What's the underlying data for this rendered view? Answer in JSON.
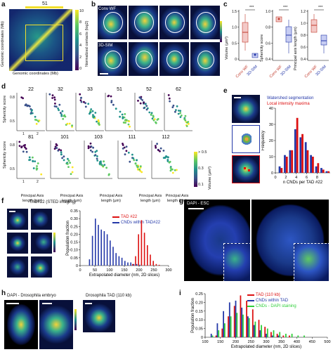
{
  "panels": {
    "a": {
      "label": "a",
      "top_value": "51",
      "y_label": "Genomic coordinates (Mb)",
      "x_label": "Genomic coordinates (Mb)",
      "colorbar_label": "Normalized contacts (log2)",
      "colorbar_ticks": [
        "10",
        "8",
        "6",
        "4",
        "2",
        "0"
      ]
    },
    "b": {
      "label": "b",
      "row1": "Conv WF",
      "row2": "3D-SIM"
    },
    "c": {
      "label": "c",
      "sig": "***",
      "plots": [
        {
          "ylabel": "Volume (μm³)",
          "ticks": [
            "1.5",
            "1.0",
            "0.5",
            "0"
          ]
        },
        {
          "ylabel": "Sphericity score",
          "ticks": [
            "1.0",
            "0.8",
            "0.6",
            "0.4"
          ]
        },
        {
          "ylabel": "Principal axis length (μm)",
          "ticks": [
            "1.2",
            "1.0",
            "0.8",
            "0.6",
            "0.4"
          ]
        }
      ],
      "xcats": [
        "Conv WF",
        "3D-SIM"
      ]
    },
    "d": {
      "label": "d",
      "titles_row1": [
        "22",
        "32",
        "33",
        "51",
        "52",
        "62"
      ],
      "titles_row2": [
        "81",
        "101",
        "103",
        "111",
        "112"
      ],
      "ylabel": "Sphericity score",
      "xlabel": "Principal Axis length (μm)",
      "yticks": [
        "0.8",
        "0.5"
      ],
      "xticks": [
        "1",
        "2"
      ],
      "colorbar_label": "Volume (μm³)",
      "colorbar_ticks": [
        "> 0.5",
        "0.3",
        "0.1"
      ]
    },
    "e": {
      "label": "e",
      "legend": [
        "Watershed segmentation",
        "Local intensity maxima"
      ],
      "ylabel": "Frequency",
      "xlabel": "n CNDs per TAD #22",
      "yticks": [
        "40",
        "30",
        "20",
        "10",
        "0"
      ],
      "xticks": [
        "0",
        "2",
        "4",
        "6",
        "8"
      ],
      "chart_data": {
        "type": "bar",
        "categories": [
          "1",
          "2",
          "3",
          "4",
          "5",
          "6",
          "7",
          "8",
          "9",
          "10"
        ],
        "series": [
          {
            "name": "Watershed segmentation",
            "values": [
              4,
              11,
              14,
              27,
              22,
              19,
              11,
              4,
              3,
              1
            ]
          },
          {
            "name": "Local intensity maxima",
            "values": [
              3,
              10,
              14,
              34,
              24,
              14,
              10,
              6,
              2,
              1
            ]
          }
        ],
        "ylim": [
          0,
          40
        ]
      }
    },
    "f": {
      "label": "f",
      "title": "TAD#22 (STED imaging)",
      "legend": [
        "TAD #22",
        "CNDs within TAD#22"
      ],
      "ylabel": "Population fraction",
      "xlabel": "Extrapolated diameter (nm, 2D slices)",
      "yticks": [
        "0.35",
        "0.30",
        "0.25",
        "0.20",
        "0.15",
        "0.10",
        "0.05",
        "0"
      ],
      "xticks": [
        "0",
        "50",
        "100",
        "150",
        "200",
        "250",
        "300"
      ],
      "chart_data": {
        "type": "bar",
        "series": [
          {
            "name": "TAD #22",
            "x": [
              180,
              190,
              200,
              210,
              220,
              230,
              240,
              250,
              260,
              270,
              280
            ],
            "values": [
              0.01,
              0.06,
              0.2,
              0.29,
              0.21,
              0.13,
              0.07,
              0.03,
              0.01,
              0.005,
              0.0
            ]
          },
          {
            "name": "CNDs within TAD#22",
            "x": [
              30,
              40,
              50,
              60,
              70,
              80,
              90,
              100,
              110,
              120,
              130,
              140,
              150,
              160,
              170,
              180,
              190,
              200
            ],
            "values": [
              0.04,
              0.19,
              0.3,
              0.26,
              0.23,
              0.22,
              0.2,
              0.16,
              0.12,
              0.08,
              0.06,
              0.05,
              0.03,
              0.02,
              0.02,
              0.01,
              0.01,
              0.005
            ]
          }
        ],
        "ylim": [
          0,
          0.35
        ],
        "xlim": [
          0,
          300
        ]
      }
    },
    "g": {
      "label": "g",
      "title": "DAPI - ESC"
    },
    "h": {
      "label": "h",
      "title1": "DAPI - Drosophila embryo",
      "title2": "Drosophila TAD (110 kb)"
    },
    "i": {
      "label": "i",
      "legend": [
        "TAD (110 kb)",
        "CNDs within TAD",
        "CNDs - DAPI staining"
      ],
      "ylabel": "Population fraction",
      "xlabel": "Extrapolated diameter (nm, 2D slices)",
      "yticks": [
        "0.25",
        "0.20",
        "0.15",
        "0.10",
        "0.05",
        "0"
      ],
      "xticks": [
        "100",
        "150",
        "200",
        "250",
        "300",
        "350",
        "400",
        "450",
        "500"
      ],
      "chart_data": {
        "type": "bar",
        "series": [
          {
            "name": "TAD (110 kb)",
            "x": [
              140,
              160,
              180,
              200,
              220,
              240,
              260,
              280,
              300,
              320,
              340,
              360,
              380
            ],
            "values": [
              0.01,
              0.05,
              0.12,
              0.18,
              0.24,
              0.21,
              0.16,
              0.1,
              0.06,
              0.03,
              0.02,
              0.01,
              0.01
            ]
          },
          {
            "name": "CNDs within TAD",
            "x": [
              120,
              140,
              160,
              180,
              200,
              220,
              240,
              260,
              280,
              300,
              320,
              340
            ],
            "values": [
              0.02,
              0.08,
              0.15,
              0.2,
              0.21,
              0.17,
              0.12,
              0.07,
              0.04,
              0.02,
              0.01,
              0.01
            ]
          },
          {
            "name": "CNDs - DAPI staining",
            "x": [
              120,
              140,
              160,
              180,
              200,
              220,
              240,
              260,
              280,
              300,
              320,
              340,
              360,
              380,
              400,
              420
            ],
            "values": [
              0.01,
              0.04,
              0.08,
              0.12,
              0.14,
              0.13,
              0.11,
              0.09,
              0.07,
              0.05,
              0.04,
              0.03,
              0.02,
              0.02,
              0.01,
              0.01
            ]
          }
        ],
        "ylim": [
          0,
          0.25
        ],
        "xlim": [
          100,
          500
        ]
      }
    }
  }
}
